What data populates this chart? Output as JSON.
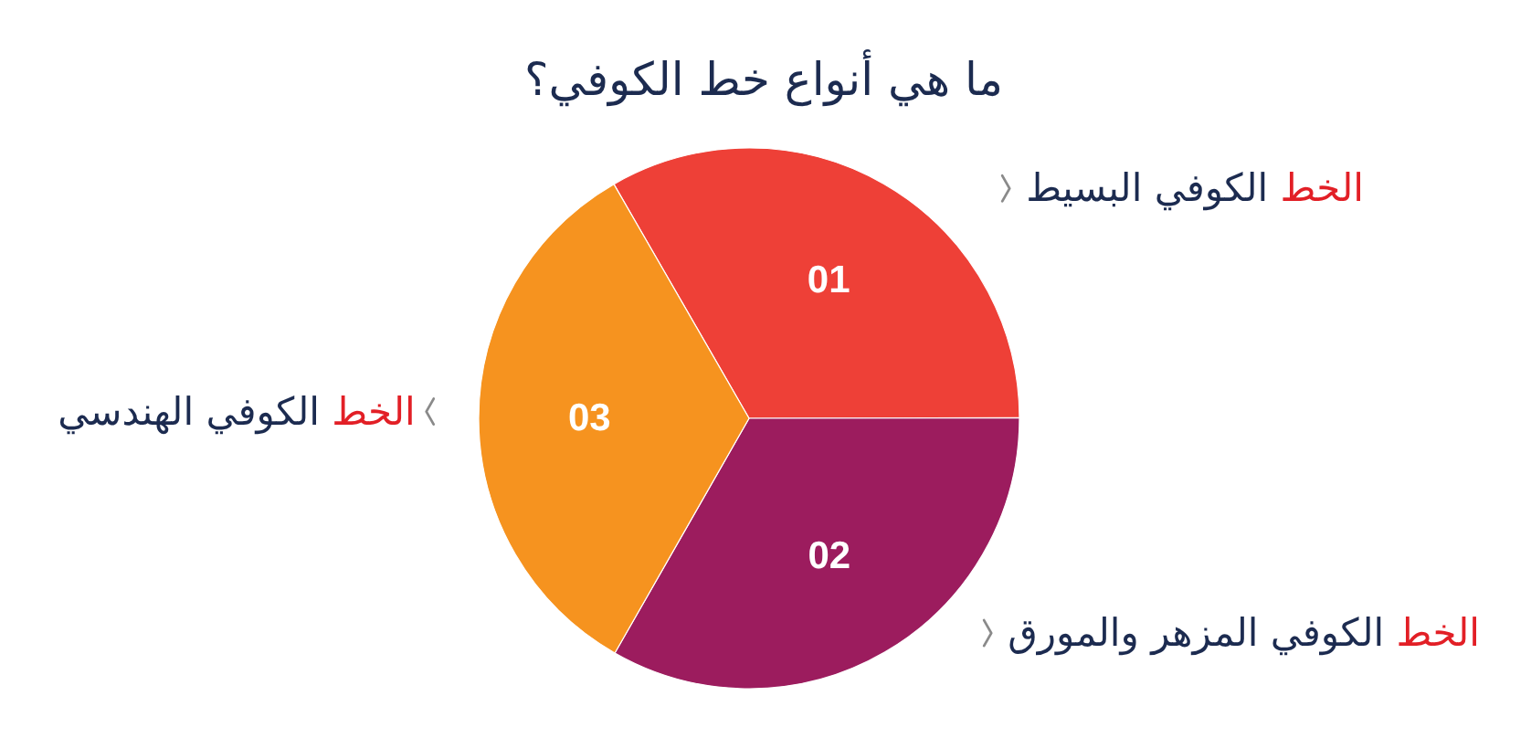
{
  "chart_data": {
    "type": "pie",
    "title": "ما هي أنواع خط الكوفي؟",
    "categories": [
      "الخط الكوفي البسيط",
      "الخط الكوفي المزهر والمورق",
      "الخط الكوفي الهندسي"
    ],
    "values": [
      33.3,
      33.3,
      33.4
    ],
    "colors": [
      "#ee4037",
      "#9c1c5e",
      "#f6931f"
    ],
    "annotations": [
      "01",
      "02",
      "03"
    ]
  }
}
